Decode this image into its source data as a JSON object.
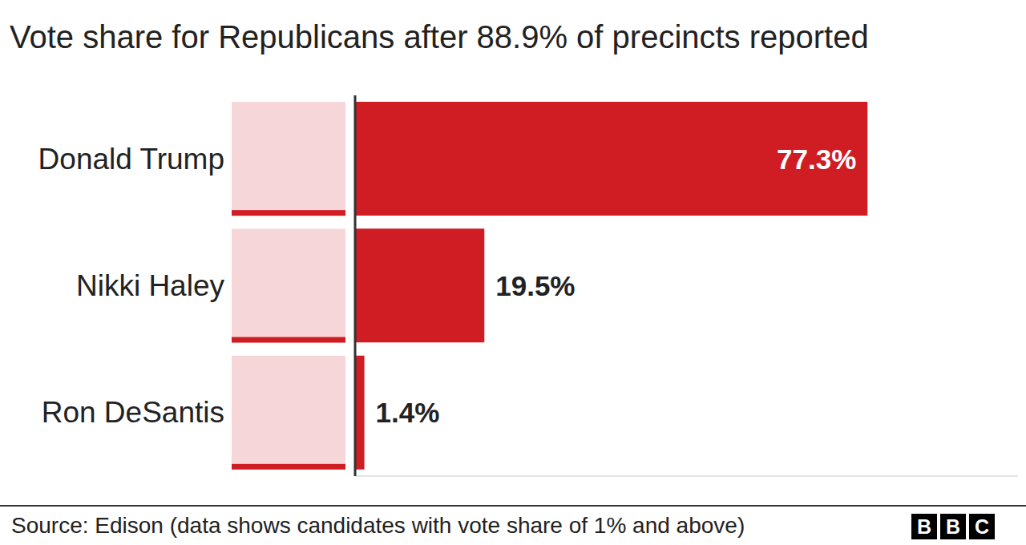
{
  "chart_data": {
    "type": "bar",
    "title": "Vote share for Republicans after 88.9% of precincts reported",
    "categories": [
      "Donald Trump",
      "Nikki Haley",
      "Ron DeSantis"
    ],
    "values": [
      77.3,
      19.5,
      1.4
    ],
    "value_labels": [
      "77.3%",
      "19.5%",
      "1.4%"
    ],
    "color": "#cf1d23",
    "orientation": "horizontal",
    "data_labels": true,
    "tick_labels": false,
    "grid": false,
    "xlim": [
      0,
      100
    ],
    "xticks": [
      0,
      100
    ],
    "source": "Source: Edison (data shows candidates with vote share of 1% and above)",
    "logo": "BBC"
  }
}
